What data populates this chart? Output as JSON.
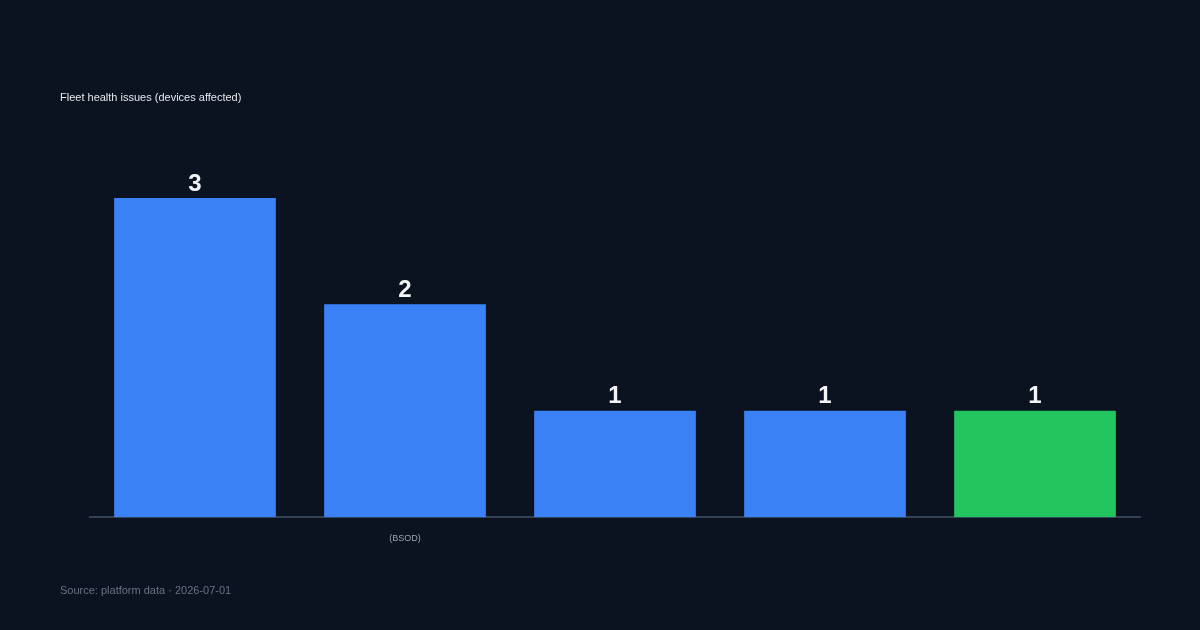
{
  "chart_data": {
    "type": "bar",
    "subtitle": "Fleet health issues (devices affected)",
    "categories": [
      null,
      "(BSOD)",
      null,
      null,
      null
    ],
    "values": [
      3,
      2,
      1,
      1,
      1
    ],
    "colors": [
      "#3b82f6",
      "#3b82f6",
      "#3b82f6",
      "#3b82f6",
      "#22c55e"
    ],
    "data_labels": true,
    "legend": false,
    "annotations": [
      "Source: platform data · 2026-07-01"
    ]
  }
}
